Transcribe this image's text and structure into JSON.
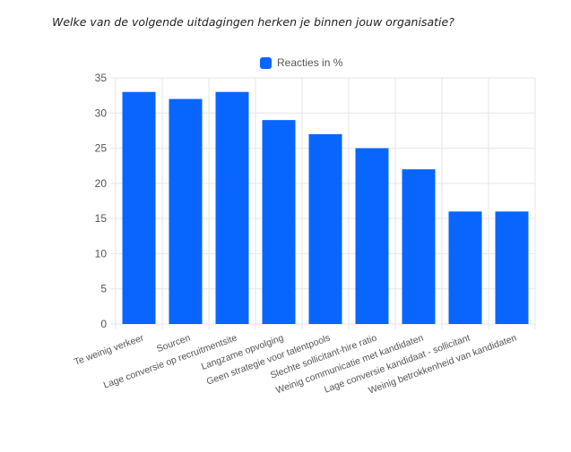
{
  "question": "Welke van de volgende uitdagingen herken je binnen jouw organisatie?",
  "colors": {
    "bar": "#0866ff",
    "grid": "#e6e6e6",
    "axis_text": "#555555"
  },
  "chart_data": {
    "type": "bar",
    "categories": [
      "Te weinig verkeer",
      "Sourcen",
      "Lage conversie op recruitmentsite",
      "Langzame opvolging",
      "Geen strategie voor talentpools",
      "Slechte sollicitant-hire ratio",
      "Weinig communicatie met kandidaten",
      "Lage conversie kandidaat - sollicitant",
      "Weinig betrokkenheid van kandidaten"
    ],
    "series": [
      {
        "name": "Reacties in %",
        "values": [
          33,
          32,
          33,
          29,
          27,
          25,
          22,
          16,
          16
        ]
      }
    ],
    "ylim": [
      0,
      35
    ],
    "yticks": [
      0,
      5,
      10,
      15,
      20,
      25,
      30,
      35
    ],
    "legend": "top-center",
    "grid": true
  }
}
